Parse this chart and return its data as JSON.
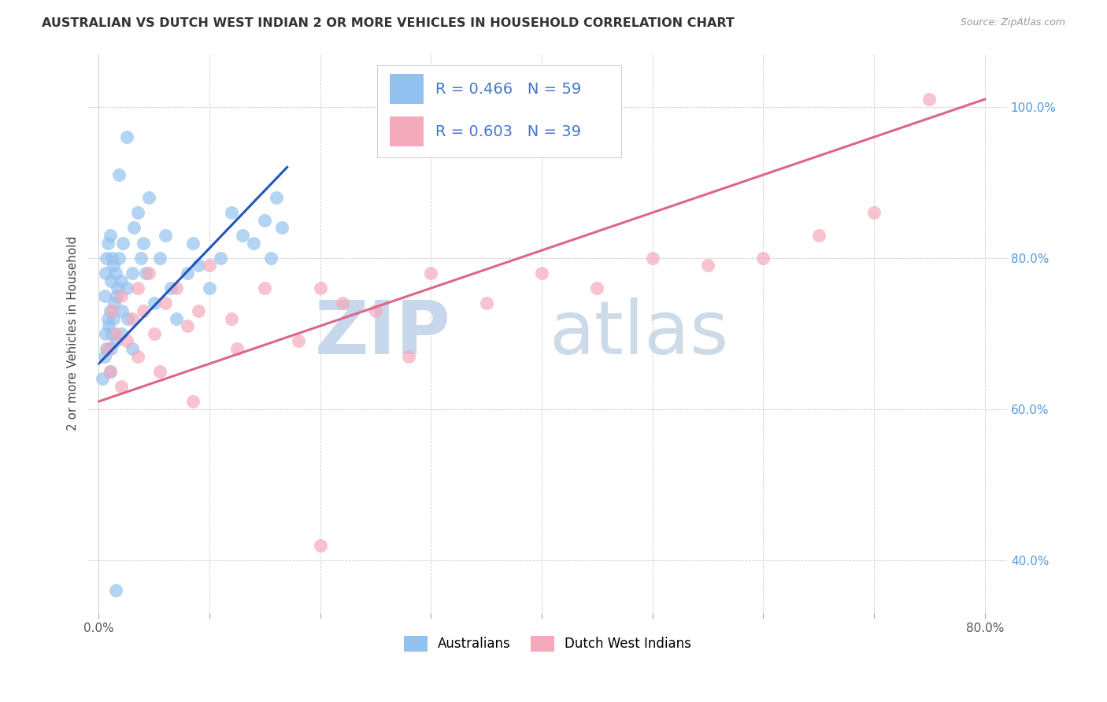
{
  "title": "AUSTRALIAN VS DUTCH WEST INDIAN 2 OR MORE VEHICLES IN HOUSEHOLD CORRELATION CHART",
  "source": "Source: ZipAtlas.com",
  "ylabel": "2 or more Vehicles in Household",
  "xlim": [
    -1,
    82
  ],
  "ylim": [
    33,
    107
  ],
  "blue_R": 0.466,
  "blue_N": 59,
  "pink_R": 0.603,
  "pink_N": 39,
  "blue_color": "#94C2F0",
  "pink_color": "#F4AABB",
  "blue_line_color": "#2255BB",
  "pink_line_color": "#DD6688",
  "legend_label_blue": "Australians",
  "legend_label_pink": "Dutch West Indians",
  "x_tick_positions": [
    0,
    10,
    20,
    30,
    40,
    50,
    60,
    70,
    80
  ],
  "x_tick_labels": [
    "0.0%",
    "",
    "",
    "",
    "",
    "",
    "",
    "",
    "80.0%"
  ],
  "y_tick_positions_right": [
    40,
    60,
    80,
    100
  ],
  "y_tick_labels_right": [
    "40.0%",
    "60.0%",
    "80.0%",
    "100.0%"
  ],
  "grid_color": "#CCCCCC",
  "title_color": "#333333",
  "source_color": "#999999",
  "ylabel_color": "#444444",
  "blue_x": [
    0.3,
    0.5,
    0.5,
    0.6,
    0.6,
    0.7,
    0.7,
    0.8,
    0.8,
    0.9,
    1.0,
    1.0,
    1.0,
    1.1,
    1.1,
    1.2,
    1.2,
    1.3,
    1.3,
    1.4,
    1.5,
    1.5,
    1.6,
    1.7,
    1.8,
    2.0,
    2.0,
    2.1,
    2.2,
    2.5,
    2.6,
    3.0,
    3.2,
    3.5,
    3.8,
    4.0,
    4.2,
    4.5,
    5.0,
    5.5,
    6.0,
    6.5,
    7.0,
    8.0,
    8.5,
    9.0,
    10.0,
    11.0,
    12.0,
    13.0,
    14.0,
    15.0,
    15.5,
    16.0,
    16.5,
    1.5,
    2.5,
    1.8,
    3.0
  ],
  "blue_y": [
    64,
    67,
    75,
    70,
    78,
    68,
    80,
    72,
    82,
    71,
    65,
    73,
    83,
    68,
    77,
    70,
    80,
    72,
    79,
    74,
    69,
    78,
    75,
    76,
    80,
    70,
    77,
    73,
    82,
    76,
    72,
    78,
    84,
    86,
    80,
    82,
    78,
    88,
    74,
    80,
    83,
    76,
    72,
    78,
    82,
    79,
    76,
    80,
    86,
    83,
    82,
    85,
    80,
    88,
    84,
    36,
    96,
    91,
    68
  ],
  "pink_x": [
    0.8,
    1.0,
    1.2,
    1.5,
    2.0,
    2.5,
    3.0,
    3.5,
    4.0,
    4.5,
    5.0,
    6.0,
    7.0,
    8.0,
    9.0,
    10.0,
    12.0,
    15.0,
    18.0,
    20.0,
    22.0,
    25.0,
    28.0,
    30.0,
    35.0,
    40.0,
    45.0,
    50.0,
    55.0,
    60.0,
    65.0,
    70.0,
    75.0,
    2.0,
    3.5,
    5.5,
    8.5,
    12.5,
    20.0
  ],
  "pink_y": [
    68,
    65,
    73,
    70,
    75,
    69,
    72,
    76,
    73,
    78,
    70,
    74,
    76,
    71,
    73,
    79,
    72,
    76,
    69,
    76,
    74,
    73,
    67,
    78,
    74,
    78,
    76,
    80,
    79,
    80,
    83,
    86,
    101,
    63,
    67,
    65,
    61,
    68,
    42
  ],
  "blue_trend_x0": 0,
  "blue_trend_x1": 17,
  "blue_trend_y0": 66,
  "blue_trend_y1": 92,
  "pink_trend_x0": 0,
  "pink_trend_x1": 80,
  "pink_trend_y0": 61,
  "pink_trend_y1": 101
}
